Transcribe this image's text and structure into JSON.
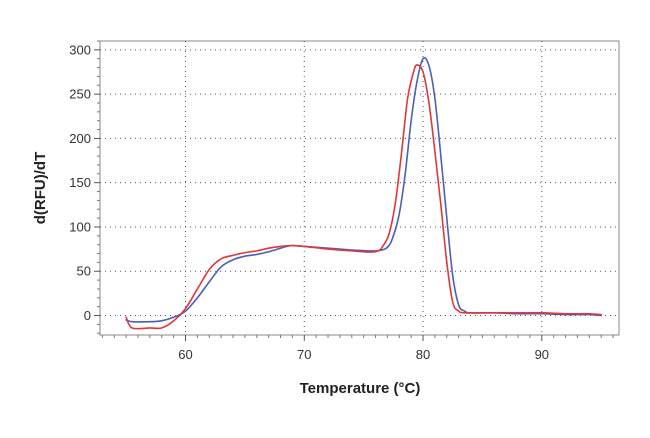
{
  "chart_data": {
    "type": "line",
    "title": "",
    "xlabel": "Temperature (°C)",
    "ylabel": "d(RFU)/dT",
    "xlim": [
      52.8,
      96.5
    ],
    "ylim": [
      -22,
      310
    ],
    "xticks": [
      60,
      70,
      80,
      90
    ],
    "yticks": [
      0,
      50,
      100,
      150,
      200,
      250,
      300
    ],
    "grid": "dotted",
    "legend": "none",
    "series": [
      {
        "color": "#4a5fb8",
        "points": [
          [
            55,
            -5
          ],
          [
            55.5,
            -7
          ],
          [
            57,
            -7
          ],
          [
            58,
            -6
          ],
          [
            59,
            -2
          ],
          [
            60,
            5
          ],
          [
            61,
            20
          ],
          [
            62,
            38
          ],
          [
            63,
            55
          ],
          [
            64,
            63
          ],
          [
            65,
            67
          ],
          [
            66,
            69
          ],
          [
            67,
            72
          ],
          [
            68,
            76
          ],
          [
            68.5,
            78
          ],
          [
            69,
            79
          ],
          [
            70,
            78
          ],
          [
            72,
            76
          ],
          [
            74,
            74
          ],
          [
            76,
            73
          ],
          [
            77,
            77
          ],
          [
            77.5,
            90
          ],
          [
            78,
            115
          ],
          [
            78.5,
            160
          ],
          [
            79,
            220
          ],
          [
            79.5,
            265
          ],
          [
            80,
            290
          ],
          [
            80.5,
            282
          ],
          [
            81,
            245
          ],
          [
            81.5,
            180
          ],
          [
            82,
            110
          ],
          [
            82.5,
            45
          ],
          [
            83,
            12
          ],
          [
            83.5,
            5
          ],
          [
            84,
            3
          ],
          [
            86,
            3
          ],
          [
            88,
            2
          ],
          [
            90,
            2
          ],
          [
            92,
            1
          ],
          [
            94,
            1
          ],
          [
            95,
            0
          ]
        ]
      },
      {
        "color": "#e0363b",
        "points": [
          [
            55,
            -2
          ],
          [
            55.5,
            -14
          ],
          [
            57,
            -14
          ],
          [
            58,
            -14
          ],
          [
            59,
            -6
          ],
          [
            60,
            8
          ],
          [
            61,
            30
          ],
          [
            62,
            52
          ],
          [
            63,
            64
          ],
          [
            64,
            68
          ],
          [
            65,
            71
          ],
          [
            66,
            73
          ],
          [
            67,
            76
          ],
          [
            68,
            78
          ],
          [
            69,
            79
          ],
          [
            70,
            78
          ],
          [
            72,
            75
          ],
          [
            74,
            73
          ],
          [
            76,
            72
          ],
          [
            76.7,
            80
          ],
          [
            77.2,
            95
          ],
          [
            77.7,
            130
          ],
          [
            78.2,
            185
          ],
          [
            78.7,
            245
          ],
          [
            79.2,
            275
          ],
          [
            79.5,
            283
          ],
          [
            80,
            275
          ],
          [
            80.5,
            240
          ],
          [
            81,
            185
          ],
          [
            81.5,
            125
          ],
          [
            82,
            60
          ],
          [
            82.5,
            15
          ],
          [
            83,
            5
          ],
          [
            83.5,
            3
          ],
          [
            85,
            3
          ],
          [
            88,
            3
          ],
          [
            90,
            3
          ],
          [
            92,
            2
          ],
          [
            94,
            2
          ],
          [
            95,
            1
          ]
        ]
      }
    ]
  }
}
